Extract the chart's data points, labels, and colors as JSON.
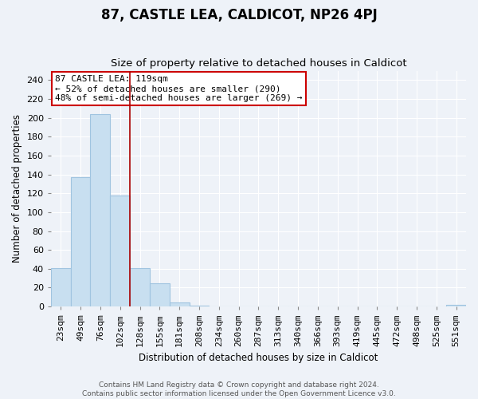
{
  "title": "87, CASTLE LEA, CALDICOT, NP26 4PJ",
  "subtitle": "Size of property relative to detached houses in Caldicot",
  "xlabel": "Distribution of detached houses by size in Caldicot",
  "ylabel": "Number of detached properties",
  "bar_labels": [
    "23sqm",
    "49sqm",
    "76sqm",
    "102sqm",
    "128sqm",
    "155sqm",
    "181sqm",
    "208sqm",
    "234sqm",
    "260sqm",
    "287sqm",
    "313sqm",
    "340sqm",
    "366sqm",
    "393sqm",
    "419sqm",
    "445sqm",
    "472sqm",
    "498sqm",
    "525sqm",
    "551sqm"
  ],
  "bar_values": [
    41,
    137,
    204,
    118,
    41,
    25,
    4,
    1,
    0,
    0,
    0,
    0,
    0,
    0,
    0,
    0,
    0,
    0,
    0,
    0,
    2
  ],
  "bar_color": "#c8dff0",
  "bar_edge_color": "#a0c4e0",
  "vline_x_index": 3,
  "vline_color": "#aa0000",
  "ylim": [
    0,
    250
  ],
  "yticks": [
    0,
    20,
    40,
    60,
    80,
    100,
    120,
    140,
    160,
    180,
    200,
    220,
    240
  ],
  "annotation_title": "87 CASTLE LEA: 119sqm",
  "annotation_line1": "← 52% of detached houses are smaller (290)",
  "annotation_line2": "48% of semi-detached houses are larger (269) →",
  "annotation_box_facecolor": "#ffffff",
  "annotation_box_edgecolor": "#cc0000",
  "footer_line1": "Contains HM Land Registry data © Crown copyright and database right 2024.",
  "footer_line2": "Contains public sector information licensed under the Open Government Licence v3.0.",
  "background_color": "#eef2f8",
  "grid_color": "#ffffff",
  "title_fontsize": 12,
  "subtitle_fontsize": 9.5,
  "xlabel_fontsize": 8.5,
  "ylabel_fontsize": 8.5,
  "tick_fontsize": 8,
  "annotation_fontsize": 8,
  "footer_fontsize": 6.5
}
